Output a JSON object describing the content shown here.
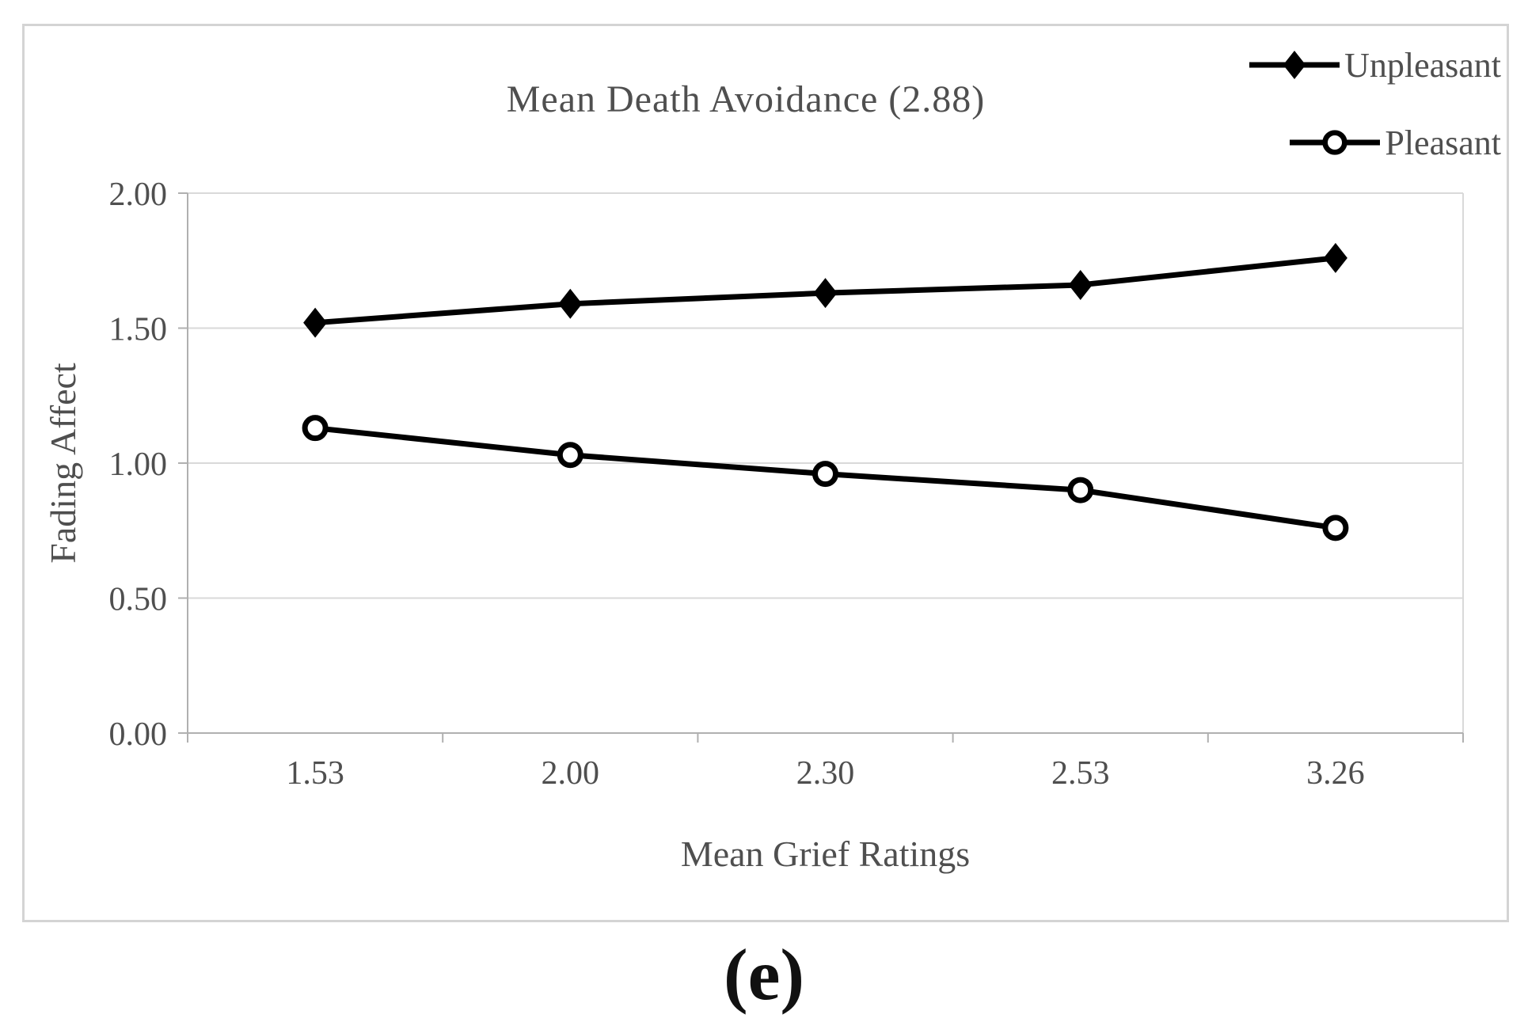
{
  "figure": {
    "caption": "(e)"
  },
  "chart_data": {
    "type": "line",
    "title": "Mean Death Avoidance (2.88)",
    "xlabel": "Mean Grief Ratings",
    "ylabel": "Fading Affect",
    "categories": [
      "1.53",
      "2.00",
      "2.30",
      "2.53",
      "3.26"
    ],
    "series": [
      {
        "name": "Unpleasant",
        "marker": "filled-diamond",
        "color": "#000000",
        "values": [
          1.52,
          1.59,
          1.63,
          1.66,
          1.76
        ]
      },
      {
        "name": "Pleasant",
        "marker": "open-circle",
        "color": "#000000",
        "values": [
          1.13,
          1.03,
          0.96,
          0.9,
          0.76
        ]
      }
    ],
    "ylim": [
      0.0,
      2.0
    ],
    "yticks": [
      0.0,
      0.5,
      1.0,
      1.5,
      2.0
    ],
    "ytick_labels": [
      "0.00",
      "0.50",
      "1.00",
      "1.50",
      "2.00"
    ],
    "grid": true,
    "legend_position": "top-right",
    "colors": {
      "text": "#4f4f4f",
      "gridline": "#d9d9d9",
      "axis": "#b0b0b0",
      "series": "#000000",
      "frame_border": "#d4d4d4"
    }
  }
}
